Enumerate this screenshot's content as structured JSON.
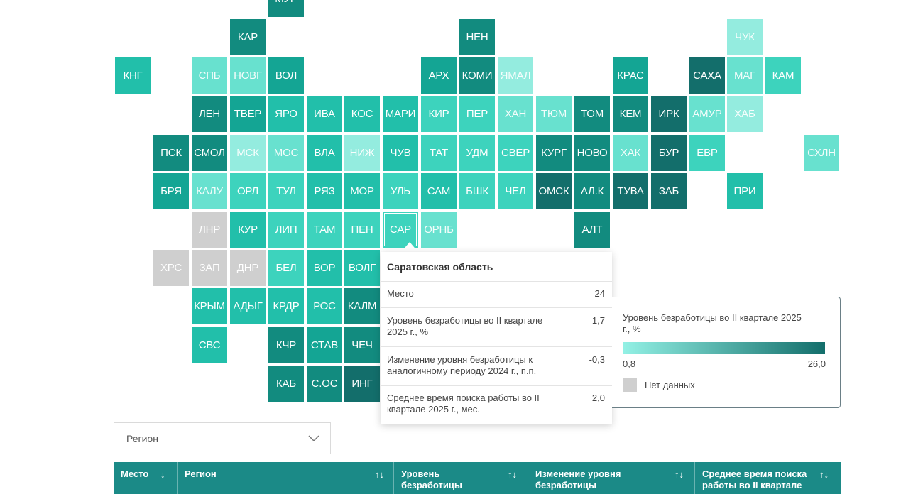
{
  "map": {
    "colors": {
      "c1": "#94ecdf",
      "c2": "#68e1cf",
      "c3": "#3dd3bd",
      "c4": "#22bfaa",
      "c5": "#14a594",
      "c6": "#128b7f",
      "c7": "#136e6b",
      "nd": "#cfcfcf"
    },
    "tiles": [
      {
        "label": "МУР",
        "col": 7,
        "row": -1,
        "level": "c6"
      },
      {
        "label": "КАР",
        "col": 6,
        "row": 0,
        "level": "c6"
      },
      {
        "label": "НЕН",
        "col": 12,
        "row": 0,
        "level": "c6"
      },
      {
        "label": "ЧУК",
        "col": 19,
        "row": 0,
        "level": "c1"
      },
      {
        "label": "КНГ",
        "col": 3,
        "row": 1,
        "level": "c4"
      },
      {
        "label": "СПБ",
        "col": 5,
        "row": 1,
        "level": "c2"
      },
      {
        "label": "НОВГ",
        "col": 6,
        "row": 1,
        "level": "c2"
      },
      {
        "label": "ВОЛ",
        "col": 7,
        "row": 1,
        "level": "c5"
      },
      {
        "label": "АРХ",
        "col": 11,
        "row": 1,
        "level": "c5"
      },
      {
        "label": "КОМИ",
        "col": 12,
        "row": 1,
        "level": "c6"
      },
      {
        "label": "ЯМАЛ",
        "col": 13,
        "row": 1,
        "level": "c1"
      },
      {
        "label": "КРАС",
        "col": 16,
        "row": 1,
        "level": "c5"
      },
      {
        "label": "САХА",
        "col": 18,
        "row": 1,
        "level": "c7"
      },
      {
        "label": "МАГ",
        "col": 19,
        "row": 1,
        "level": "c2"
      },
      {
        "label": "КАМ",
        "col": 20,
        "row": 1,
        "level": "c3"
      },
      {
        "label": "ЛЕН",
        "col": 5,
        "row": 2,
        "level": "c6"
      },
      {
        "label": "ТВЕР",
        "col": 6,
        "row": 2,
        "level": "c5"
      },
      {
        "label": "ЯРО",
        "col": 7,
        "row": 2,
        "level": "c4"
      },
      {
        "label": "ИВА",
        "col": 8,
        "row": 2,
        "level": "c4"
      },
      {
        "label": "КОС",
        "col": 9,
        "row": 2,
        "level": "c4"
      },
      {
        "label": "МАРИ",
        "col": 10,
        "row": 2,
        "level": "c4"
      },
      {
        "label": "КИР",
        "col": 11,
        "row": 2,
        "level": "c3"
      },
      {
        "label": "ПЕР",
        "col": 12,
        "row": 2,
        "level": "c3"
      },
      {
        "label": "ХАН",
        "col": 13,
        "row": 2,
        "level": "c2"
      },
      {
        "label": "ТЮМ",
        "col": 14,
        "row": 2,
        "level": "c2"
      },
      {
        "label": "ТОМ",
        "col": 15,
        "row": 2,
        "level": "c6"
      },
      {
        "label": "КЕМ",
        "col": 16,
        "row": 2,
        "level": "c6"
      },
      {
        "label": "ИРК",
        "col": 17,
        "row": 2,
        "level": "c7"
      },
      {
        "label": "АМУР",
        "col": 18,
        "row": 2,
        "level": "c2"
      },
      {
        "label": "ХАБ",
        "col": 19,
        "row": 2,
        "level": "c1"
      },
      {
        "label": "ПСК",
        "col": 4,
        "row": 3,
        "level": "c6"
      },
      {
        "label": "СМОЛ",
        "col": 5,
        "row": 3,
        "level": "c6"
      },
      {
        "label": "МСК",
        "col": 6,
        "row": 3,
        "level": "c1"
      },
      {
        "label": "МОС",
        "col": 7,
        "row": 3,
        "level": "c2"
      },
      {
        "label": "ВЛА",
        "col": 8,
        "row": 3,
        "level": "c4"
      },
      {
        "label": "НИЖ",
        "col": 9,
        "row": 3,
        "level": "c1"
      },
      {
        "label": "ЧУВ",
        "col": 10,
        "row": 3,
        "level": "c4"
      },
      {
        "label": "ТАТ",
        "col": 11,
        "row": 3,
        "level": "c3"
      },
      {
        "label": "УДМ",
        "col": 12,
        "row": 3,
        "level": "c3"
      },
      {
        "label": "СВЕР",
        "col": 13,
        "row": 3,
        "level": "c3"
      },
      {
        "label": "КУРГ",
        "col": 14,
        "row": 3,
        "level": "c6"
      },
      {
        "label": "НОВО",
        "col": 15,
        "row": 3,
        "level": "c6"
      },
      {
        "label": "ХАК",
        "col": 16,
        "row": 3,
        "level": "c2"
      },
      {
        "label": "БУР",
        "col": 17,
        "row": 3,
        "level": "c7"
      },
      {
        "label": "ЕВР",
        "col": 18,
        "row": 3,
        "level": "c3"
      },
      {
        "label": "СХЛН",
        "col": 21,
        "row": 3,
        "level": "c2"
      },
      {
        "label": "БРЯ",
        "col": 4,
        "row": 4,
        "level": "c5"
      },
      {
        "label": "КАЛУ",
        "col": 5,
        "row": 4,
        "level": "c2"
      },
      {
        "label": "ОРЛ",
        "col": 6,
        "row": 4,
        "level": "c3"
      },
      {
        "label": "ТУЛ",
        "col": 7,
        "row": 4,
        "level": "c3"
      },
      {
        "label": "РЯЗ",
        "col": 8,
        "row": 4,
        "level": "c4"
      },
      {
        "label": "МОР",
        "col": 9,
        "row": 4,
        "level": "c4"
      },
      {
        "label": "УЛЬ",
        "col": 10,
        "row": 4,
        "level": "c3"
      },
      {
        "label": "САМ",
        "col": 11,
        "row": 4,
        "level": "c4"
      },
      {
        "label": "БШК",
        "col": 12,
        "row": 4,
        "level": "c3"
      },
      {
        "label": "ЧЕЛ",
        "col": 13,
        "row": 4,
        "level": "c3"
      },
      {
        "label": "ОМСК",
        "col": 14,
        "row": 4,
        "level": "c7"
      },
      {
        "label": "АЛ.К",
        "col": 15,
        "row": 4,
        "level": "c6"
      },
      {
        "label": "ТУВА",
        "col": 16,
        "row": 4,
        "level": "c7"
      },
      {
        "label": "ЗАБ",
        "col": 17,
        "row": 4,
        "level": "c7"
      },
      {
        "label": "ПРИ",
        "col": 19,
        "row": 4,
        "level": "c4"
      },
      {
        "label": "ЛНР",
        "col": 5,
        "row": 5,
        "level": "nd"
      },
      {
        "label": "КУР",
        "col": 6,
        "row": 5,
        "level": "c4"
      },
      {
        "label": "ЛИП",
        "col": 7,
        "row": 5,
        "level": "c3"
      },
      {
        "label": "ТАМ",
        "col": 8,
        "row": 5,
        "level": "c3"
      },
      {
        "label": "ПЕН",
        "col": 9,
        "row": 5,
        "level": "c3"
      },
      {
        "label": "САР",
        "col": 10,
        "row": 5,
        "level": "c3",
        "selected": true
      },
      {
        "label": "ОРНБ",
        "col": 11,
        "row": 5,
        "level": "c2"
      },
      {
        "label": "АЛТ",
        "col": 15,
        "row": 5,
        "level": "c6"
      },
      {
        "label": "ХРС",
        "col": 4,
        "row": 6,
        "level": "nd"
      },
      {
        "label": "ЗАП",
        "col": 5,
        "row": 6,
        "level": "nd"
      },
      {
        "label": "ДНР",
        "col": 6,
        "row": 6,
        "level": "nd"
      },
      {
        "label": "БЕЛ",
        "col": 7,
        "row": 6,
        "level": "c3"
      },
      {
        "label": "ВОР",
        "col": 8,
        "row": 6,
        "level": "c4"
      },
      {
        "label": "ВОЛГ",
        "col": 9,
        "row": 6,
        "level": "c4"
      },
      {
        "label": "КРЫМ",
        "col": 5,
        "row": 7,
        "level": "c4"
      },
      {
        "label": "АДЫГ",
        "col": 6,
        "row": 7,
        "level": "c4"
      },
      {
        "label": "КРДР",
        "col": 7,
        "row": 7,
        "level": "c4"
      },
      {
        "label": "РОС",
        "col": 8,
        "row": 7,
        "level": "c4"
      },
      {
        "label": "КАЛМ",
        "col": 9,
        "row": 7,
        "level": "c6"
      },
      {
        "label": "СВС",
        "col": 5,
        "row": 8,
        "level": "c4"
      },
      {
        "label": "КЧР",
        "col": 7,
        "row": 8,
        "level": "c6"
      },
      {
        "label": "СТАВ",
        "col": 8,
        "row": 8,
        "level": "c5"
      },
      {
        "label": "ЧЕЧ",
        "col": 9,
        "row": 8,
        "level": "c6"
      },
      {
        "label": "КАБ",
        "col": 7,
        "row": 9,
        "level": "c6"
      },
      {
        "label": "С.ОС",
        "col": 8,
        "row": 9,
        "level": "c6"
      },
      {
        "label": "ИНГ",
        "col": 9,
        "row": 9,
        "level": "c7"
      }
    ]
  },
  "tooltip": {
    "title": "Саратовская область",
    "rows": [
      {
        "label": "Место",
        "value": "24"
      },
      {
        "label": "Уровень безработицы во II квартале 2025 г., %",
        "value": "1,7"
      },
      {
        "label": "Изменение уровня безработицы к аналогичному периоду 2024 г., п.п.",
        "value": "-0,3"
      },
      {
        "label": "Среднее время поиска работы во II квартале 2025 г., мес.",
        "value": "2,0"
      }
    ]
  },
  "legend": {
    "title": "Уровень безработицы во II квартале 2025 г., %",
    "min": "0,8",
    "max": "26,0",
    "no_data": "Нет данных",
    "gradient_start": "#93f1e5",
    "gradient_end": "#136e6b"
  },
  "region_select": {
    "value": "Регион"
  },
  "table": {
    "header_color": "#1b8a87",
    "columns": [
      {
        "label": "Место",
        "sort": "↓"
      },
      {
        "label": "Регион",
        "sort": "↑↓"
      },
      {
        "label": "Уровень безработицы",
        "sort": "↑↓"
      },
      {
        "label": "Изменение уровня безработицы",
        "sort": "↑↓"
      },
      {
        "label": "Среднее время поиска работы во II квартале",
        "sort": "↑↓"
      }
    ]
  }
}
